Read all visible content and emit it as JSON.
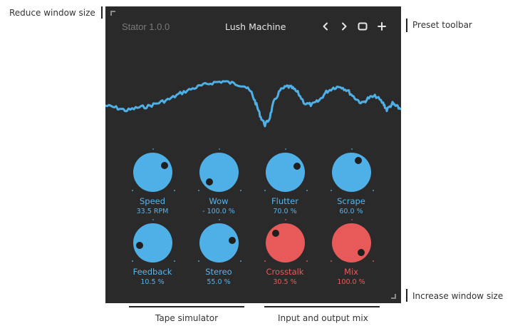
{
  "annotations": {
    "reduce_window_size": "Reduce window size",
    "preset_toolbar": "Preset toolbar",
    "increase_window_size": "Increase window size",
    "tape_simulator": "Tape simulator",
    "input_output_mix": "Input and output mix"
  },
  "plugin": {
    "app_name": "Stator 1.0.0",
    "preset_name": "Lush Machine",
    "toolbar": {
      "prev_icon": "chevron-left-icon",
      "next_icon": "chevron-right-icon",
      "save_icon": "square-icon",
      "add_icon": "plus-icon"
    }
  },
  "colors": {
    "panel_bg": "#2a2a2a",
    "blue": "#4fb0e8",
    "blue_text": "#5ab4e8",
    "red": "#e85a5a",
    "red_text": "#e85a5a",
    "dot": "#1f1f1f",
    "wave": "#4fb0e8"
  },
  "knobs": [
    {
      "label": "Speed",
      "value": "33.5 RPM",
      "color": "blue",
      "angle": 60
    },
    {
      "label": "Wow",
      "value": "- 100.0 %",
      "color": "blue",
      "angle": -135
    },
    {
      "label": "Flutter",
      "value": "70.0 %",
      "color": "blue",
      "angle": 63
    },
    {
      "label": "Scrape",
      "value": "60.0 %",
      "color": "blue",
      "angle": 30
    },
    {
      "label": "Feedback",
      "value": "10.5 %",
      "color": "blue",
      "angle": -100
    },
    {
      "label": "Stereo",
      "value": "55.0 %",
      "color": "blue",
      "angle": 80
    },
    {
      "label": "Crosstalk",
      "value": "30.5 %",
      "color": "red",
      "angle": -45
    },
    {
      "label": "Mix",
      "value": "100.0 %",
      "color": "red",
      "angle": 135
    }
  ]
}
